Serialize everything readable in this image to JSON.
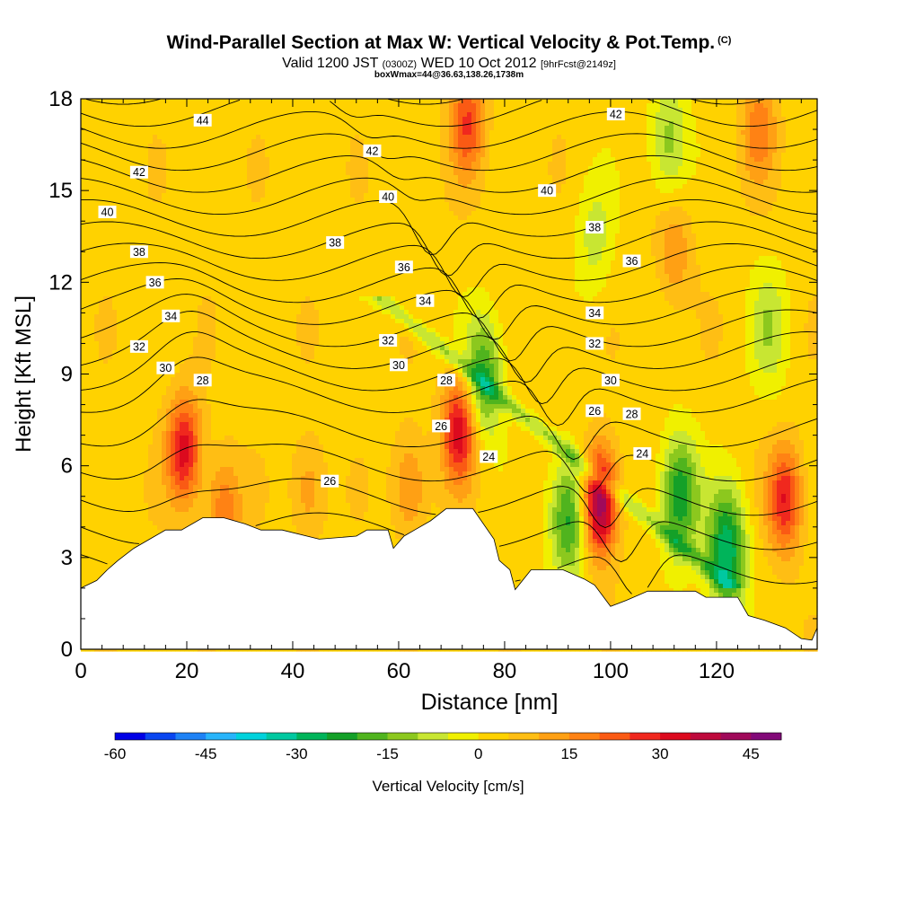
{
  "header": {
    "title": "Wind-Parallel Section at Max W: Vertical Velocity & Pot.Temp.",
    "copyright": "(C)",
    "valid_prefix": "Valid 1200 JST",
    "valid_utc": "(0300Z)",
    "valid_date": "WED 10 Oct 2012",
    "forecast": "[9hrFcst@2149z]",
    "box_info": "boxWmax=44@36.63,138.26,1738m"
  },
  "chart_data": {
    "type": "heatmap",
    "title": "Wind-Parallel Section at Max W: Vertical Velocity & Pot.Temp.",
    "xlabel": "Distance [nm]",
    "ylabel": "Height [Kft MSL]",
    "xlim": [
      0,
      139
    ],
    "ylim": [
      0,
      18
    ],
    "x_ticks": [
      0,
      20,
      40,
      60,
      80,
      100,
      120
    ],
    "y_ticks": [
      0,
      3,
      6,
      9,
      12,
      15,
      18
    ],
    "colorbar": {
      "label": "Vertical Velocity [cm/s]",
      "range": [
        -60,
        50
      ],
      "step": 5,
      "tick_values": [
        -60,
        -45,
        -30,
        -15,
        0,
        15,
        30,
        45
      ],
      "tick_labels": [
        "-60",
        "-45",
        "-30",
        "-15",
        "0",
        "15",
        "30",
        "45"
      ],
      "colors": [
        "#0000e6",
        "#0a46f0",
        "#1e82f5",
        "#28b4fa",
        "#00d2dc",
        "#00c8a0",
        "#00b45a",
        "#14a028",
        "#50b41e",
        "#8cc81e",
        "#c8e632",
        "#f0f000",
        "#ffd200",
        "#ffbe14",
        "#ffa014",
        "#ff8214",
        "#fa5a14",
        "#f0281e",
        "#dc0a1e",
        "#be0a3c",
        "#a00a5a",
        "#820a78"
      ]
    },
    "terrain": [
      [
        0,
        2
      ],
      [
        3,
        2.25
      ],
      [
        5,
        2.6
      ],
      [
        7,
        2.9
      ],
      [
        10,
        3.3
      ],
      [
        13,
        3.6
      ],
      [
        16,
        3.9
      ],
      [
        19,
        3.9
      ],
      [
        23,
        4.3
      ],
      [
        27,
        4.3
      ],
      [
        31,
        4.1
      ],
      [
        34,
        3.9
      ],
      [
        38,
        3.9
      ],
      [
        45,
        3.6
      ],
      [
        52,
        3.7
      ],
      [
        54,
        3.9
      ],
      [
        58,
        3.9
      ],
      [
        59,
        3.3
      ],
      [
        61,
        3.7
      ],
      [
        63,
        3.9
      ],
      [
        66,
        4.2
      ],
      [
        69,
        4.6
      ],
      [
        74,
        4.6
      ],
      [
        78,
        3.6
      ],
      [
        79,
        2.9
      ],
      [
        81,
        2.6
      ],
      [
        82,
        1.95
      ],
      [
        85,
        2.6
      ],
      [
        88,
        2.6
      ],
      [
        91,
        2.6
      ],
      [
        95,
        2.3
      ],
      [
        97,
        2.1
      ],
      [
        100,
        1.4
      ],
      [
        103,
        1.6
      ],
      [
        107,
        1.9
      ],
      [
        110,
        1.9
      ],
      [
        116,
        1.9
      ],
      [
        118,
        1.7
      ],
      [
        124,
        1.7
      ],
      [
        126,
        1.1
      ],
      [
        129,
        0.95
      ],
      [
        133,
        0.7
      ],
      [
        136,
        0.35
      ],
      [
        138,
        0.3
      ],
      [
        139,
        0.7
      ]
    ],
    "updrafts": [
      {
        "x": 19.5,
        "y": 6.5,
        "w": 30
      },
      {
        "x": 71.5,
        "y": 7.2,
        "w": 32
      },
      {
        "x": 98,
        "y": 4.8,
        "w": 44
      },
      {
        "x": 133,
        "y": 4.9,
        "w": 27
      },
      {
        "x": 73,
        "y": 17.2,
        "w": 22
      },
      {
        "x": 128,
        "y": 17,
        "w": 15
      },
      {
        "x": 27,
        "y": 4.6,
        "w": 16
      },
      {
        "x": 43,
        "y": 5.2,
        "w": 11
      },
      {
        "x": 62,
        "y": 5.3,
        "w": 14
      },
      {
        "x": 112,
        "y": 13,
        "w": 12
      }
    ],
    "downdrafts": [
      {
        "x": 76,
        "y": 8.9,
        "w": -24
      },
      {
        "x": 92,
        "y": 4.3,
        "w": -26
      },
      {
        "x": 113,
        "y": 5.0,
        "w": -28
      },
      {
        "x": 122,
        "y": 3.2,
        "w": -32
      },
      {
        "x": 111,
        "y": 16.6,
        "w": -16
      },
      {
        "x": 97,
        "y": 13.4,
        "w": -10
      },
      {
        "x": 130,
        "y": 10.5,
        "w": -12
      }
    ],
    "isentropes": [
      22,
      23,
      24,
      25,
      26,
      27,
      28,
      29,
      30,
      31,
      32,
      33,
      34,
      35,
      36,
      37,
      38,
      39,
      40,
      41,
      42,
      43,
      44
    ],
    "contour_labels": [
      {
        "v": "44",
        "x": 23,
        "y": 17.3
      },
      {
        "v": "42",
        "x": 11,
        "y": 15.6
      },
      {
        "v": "40",
        "x": 5,
        "y": 14.3
      },
      {
        "v": "38",
        "x": 11,
        "y": 13.0
      },
      {
        "v": "36",
        "x": 14,
        "y": 12.0
      },
      {
        "v": "34",
        "x": 17,
        "y": 10.9
      },
      {
        "v": "32",
        "x": 11,
        "y": 9.9
      },
      {
        "v": "30",
        "x": 16,
        "y": 9.2
      },
      {
        "v": "28",
        "x": 23,
        "y": 8.8
      },
      {
        "v": "42",
        "x": 55,
        "y": 16.3
      },
      {
        "v": "40",
        "x": 58,
        "y": 14.8
      },
      {
        "v": "38",
        "x": 48,
        "y": 13.3
      },
      {
        "v": "36",
        "x": 61,
        "y": 12.5
      },
      {
        "v": "34",
        "x": 65,
        "y": 11.4
      },
      {
        "v": "32",
        "x": 58,
        "y": 10.1
      },
      {
        "v": "30",
        "x": 60,
        "y": 9.3
      },
      {
        "v": "28",
        "x": 69,
        "y": 8.8
      },
      {
        "v": "26",
        "x": 68,
        "y": 7.3
      },
      {
        "v": "24",
        "x": 77,
        "y": 6.3
      },
      {
        "v": "26",
        "x": 47,
        "y": 5.5
      },
      {
        "v": "42",
        "x": 101,
        "y": 17.5
      },
      {
        "v": "40",
        "x": 88,
        "y": 15.0
      },
      {
        "v": "38",
        "x": 97,
        "y": 13.8
      },
      {
        "v": "36",
        "x": 104,
        "y": 12.7
      },
      {
        "v": "34",
        "x": 97,
        "y": 11.0
      },
      {
        "v": "32",
        "x": 97,
        "y": 10.0
      },
      {
        "v": "30",
        "x": 100,
        "y": 8.8
      },
      {
        "v": "26",
        "x": 97,
        "y": 7.8
      },
      {
        "v": "28",
        "x": 104,
        "y": 7.7
      },
      {
        "v": "24",
        "x": 106,
        "y": 6.4
      }
    ]
  }
}
